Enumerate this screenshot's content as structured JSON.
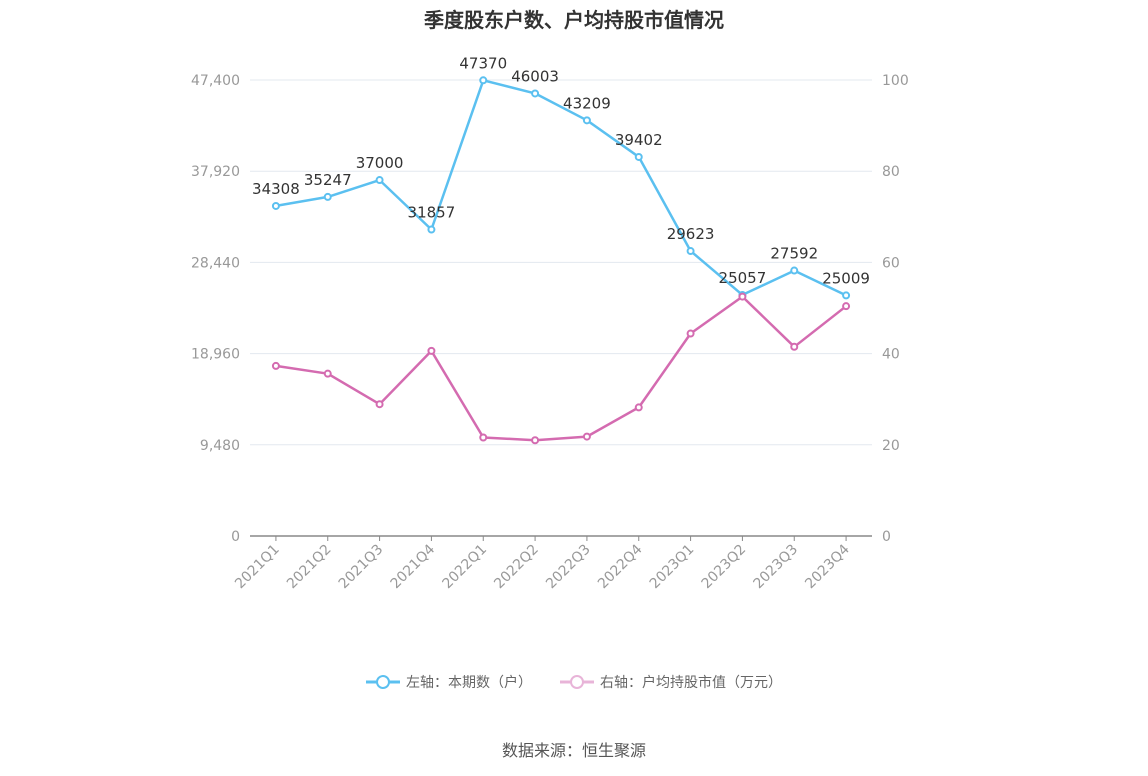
{
  "chart_data": {
    "type": "line",
    "title": "季度股东户数、户均持股市值情况",
    "categories": [
      "2021Q1",
      "2021Q2",
      "2021Q3",
      "2021Q4",
      "2022Q1",
      "2022Q2",
      "2022Q3",
      "2022Q4",
      "2023Q1",
      "2023Q2",
      "2023Q3",
      "2023Q4"
    ],
    "left_axis": {
      "ticks": [
        "0",
        "9,480",
        "18,960",
        "28,440",
        "37,920",
        "47,400"
      ],
      "ylim": [
        0,
        47400
      ]
    },
    "right_axis": {
      "ticks": [
        "0",
        "20",
        "40",
        "60",
        "80",
        "100"
      ],
      "ylim": [
        0,
        100
      ]
    },
    "series": [
      {
        "name": "左轴：本期数（户）",
        "axis": "left",
        "color": "#5bc0f0",
        "values": [
          34308,
          35247,
          37000,
          31857,
          47370,
          46003,
          43209,
          39402,
          29623,
          25057,
          27592,
          25009
        ],
        "labels": [
          "34308",
          "35247",
          "37000",
          "31857",
          "47370",
          "46003",
          "43209",
          "39402",
          "29623",
          "25057",
          "27592",
          "25009"
        ]
      },
      {
        "name": "右轴：户均持股市值（万元）",
        "axis": "right",
        "color": "#d46bb0",
        "values": [
          37.3,
          35.6,
          28.9,
          40.6,
          21.6,
          21.0,
          21.8,
          28.2,
          44.4,
          52.5,
          41.5,
          50.4
        ]
      }
    ],
    "grid": true,
    "legend_position": "bottom"
  },
  "source_text": "数据来源：恒生聚源"
}
